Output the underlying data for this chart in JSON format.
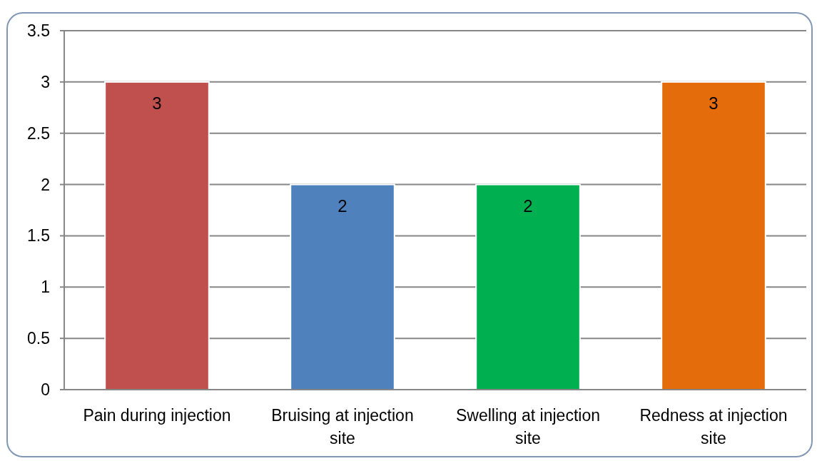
{
  "chart_data": {
    "type": "bar",
    "categories": [
      "Pain during injection",
      "Bruising at injection site",
      "Swelling at injection site",
      "Redness at injection site"
    ],
    "values": [
      3,
      2,
      2,
      3
    ],
    "colors": [
      "#c0504d",
      "#4f81bd",
      "#00b050",
      "#e46c0a"
    ],
    "ylim": [
      0,
      3.5
    ],
    "yticks": [
      0,
      0.5,
      1,
      1.5,
      2,
      2.5,
      3,
      3.5
    ],
    "grid": "y",
    "data_labels": true
  }
}
